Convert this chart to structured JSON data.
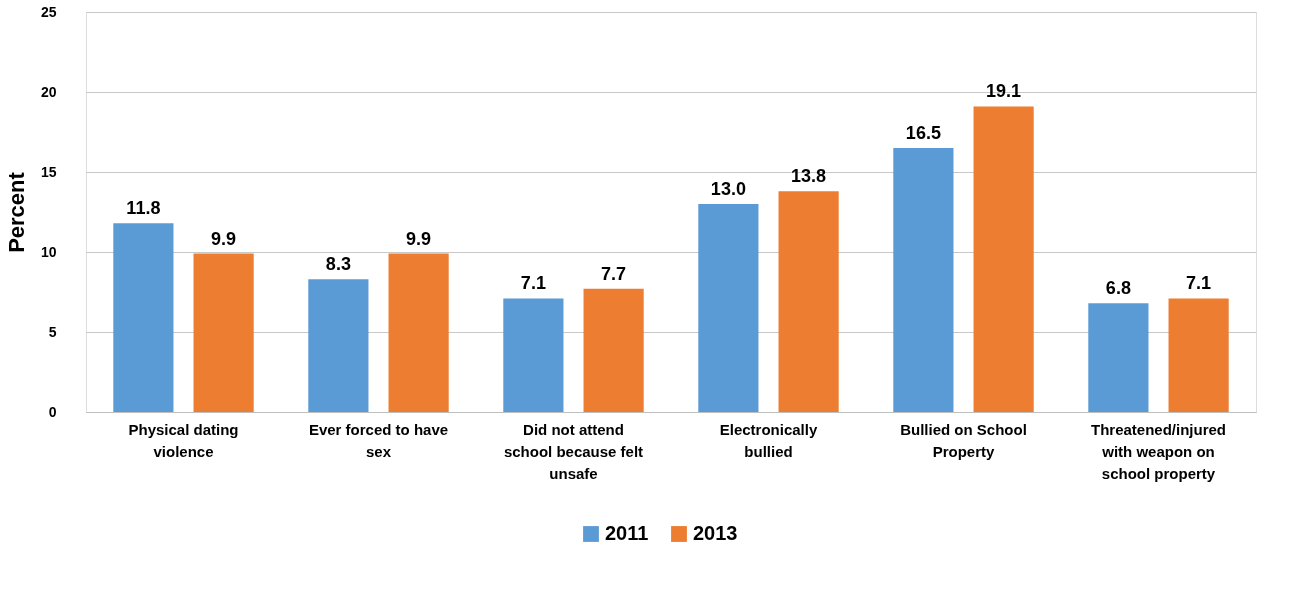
{
  "chart_data": {
    "type": "bar",
    "ylabel": "Percent",
    "categories": [
      "Physical dating violence",
      "Ever forced to have sex",
      "Did not attend school because felt unsafe",
      "Electronically bullied",
      "Bullied on School Property",
      "Threatened/injured with weapon on school property"
    ],
    "series": [
      {
        "name": "2011",
        "color": "#5b9bd5",
        "values": [
          11.8,
          8.3,
          7.1,
          13.0,
          16.5,
          6.8
        ],
        "value_labels": [
          "11.8",
          "8.3",
          "7.1",
          "13.0",
          "16.5",
          "6.8"
        ]
      },
      {
        "name": "2013",
        "color": "#ed7d31",
        "values": [
          9.9,
          9.9,
          7.7,
          13.8,
          19.1,
          7.1
        ],
        "value_labels": [
          "9.9",
          "9.9",
          "7.7",
          "13.8",
          "19.1",
          "7.1"
        ]
      }
    ],
    "ylim": [
      0,
      25
    ],
    "yticks": [
      0,
      5,
      10,
      15,
      20,
      25
    ],
    "grid": "y",
    "legend": "bottom"
  }
}
